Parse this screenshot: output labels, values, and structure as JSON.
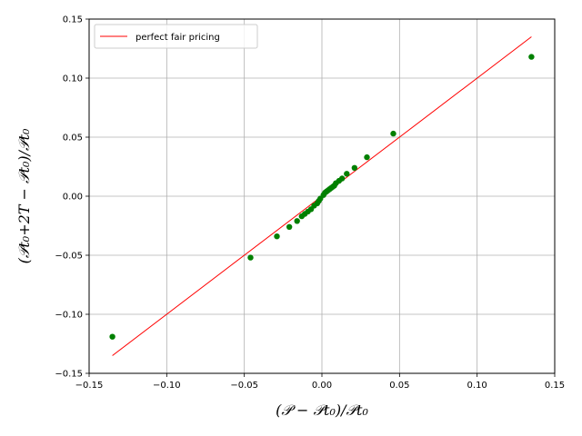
{
  "chart_data": {
    "type": "scatter",
    "xlabel": "(𝒫 − 𝒫t₀)/𝒫t₀",
    "ylabel": "(𝒫t₀+2T − 𝒫t₀)/𝒫t₀",
    "xlim": [
      -0.15,
      0.15
    ],
    "ylim": [
      -0.15,
      0.15
    ],
    "x_ticks": [
      "−0.15",
      "−0.10",
      "−0.05",
      "0.00",
      "0.05",
      "0.10",
      "0.15"
    ],
    "y_ticks": [
      "−0.15",
      "−0.10",
      "−0.05",
      "0.00",
      "0.05",
      "0.10",
      "0.15"
    ],
    "grid": true,
    "legend_position": "top-left",
    "series": [
      {
        "name": "perfect fair pricing",
        "kind": "line",
        "color": "#ff0000",
        "points": [
          [
            -0.135,
            -0.135
          ],
          [
            0.135,
            0.135
          ]
        ]
      },
      {
        "kind": "scatter",
        "color": "#008000",
        "points": [
          [
            -0.135,
            -0.119
          ],
          [
            -0.046,
            -0.052
          ],
          [
            -0.029,
            -0.034
          ],
          [
            -0.021,
            -0.026
          ],
          [
            -0.016,
            -0.021
          ],
          [
            -0.013,
            -0.017
          ],
          [
            -0.011,
            -0.015
          ],
          [
            -0.009,
            -0.013
          ],
          [
            -0.007,
            -0.011
          ],
          [
            -0.005,
            -0.008
          ],
          [
            -0.003,
            -0.006
          ],
          [
            -0.002,
            -0.004
          ],
          [
            -0.001,
            -0.002
          ],
          [
            0.001,
            0.001
          ],
          [
            0.002,
            0.003
          ],
          [
            0.003,
            0.004
          ],
          [
            0.004,
            0.005
          ],
          [
            0.005,
            0.006
          ],
          [
            0.006,
            0.007
          ],
          [
            0.007,
            0.008
          ],
          [
            0.008,
            0.009
          ],
          [
            0.009,
            0.011
          ],
          [
            0.011,
            0.013
          ],
          [
            0.013,
            0.015
          ],
          [
            0.016,
            0.019
          ],
          [
            0.021,
            0.024
          ],
          [
            0.029,
            0.033
          ],
          [
            0.046,
            0.053
          ],
          [
            0.135,
            0.118
          ]
        ]
      }
    ]
  }
}
